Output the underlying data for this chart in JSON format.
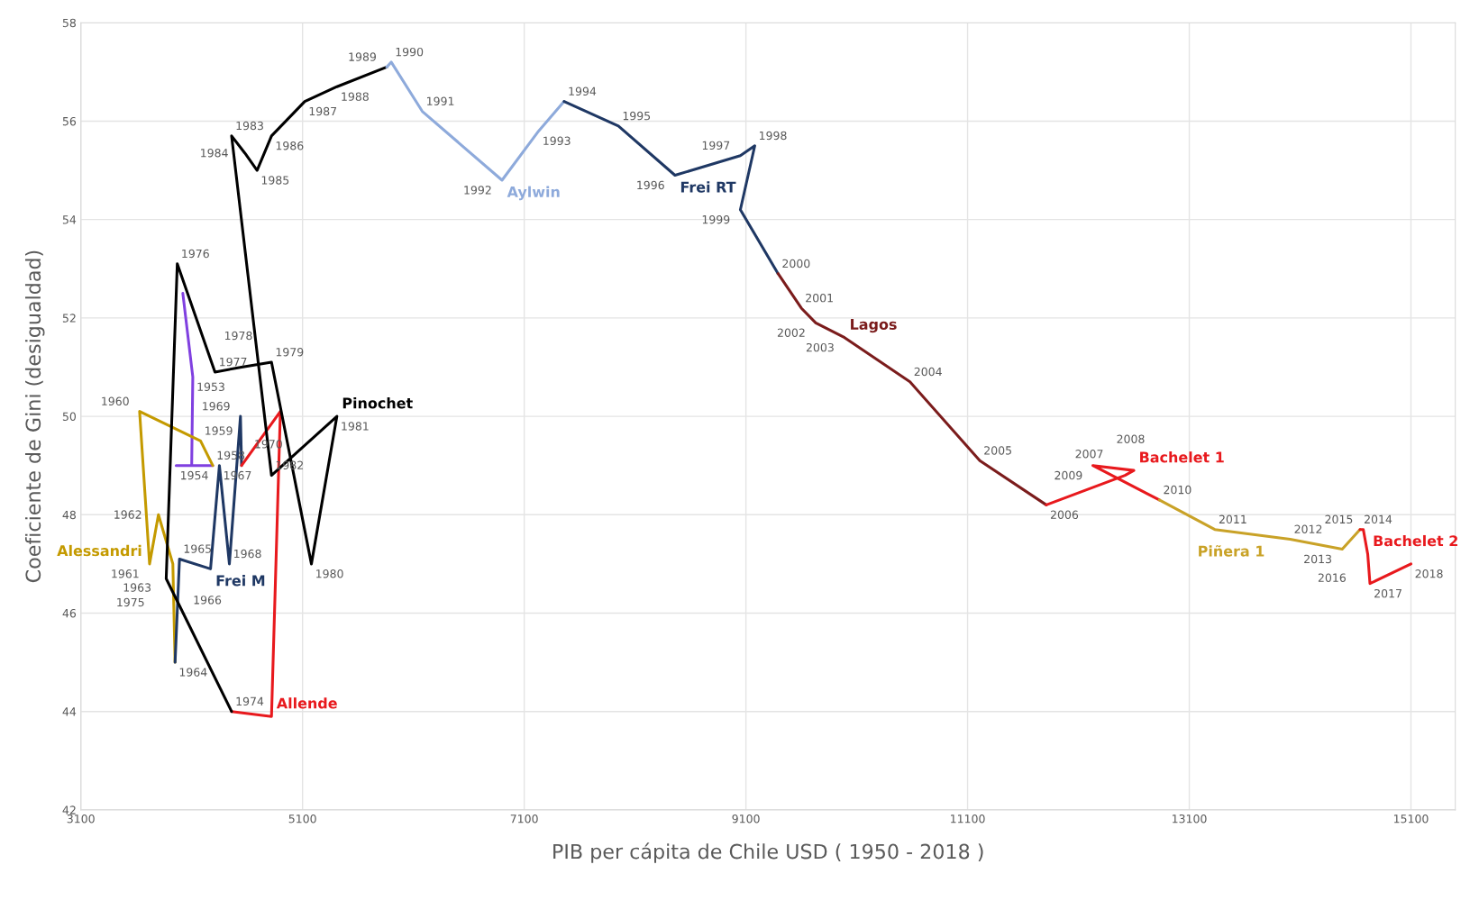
{
  "chart_data": {
    "type": "line",
    "xlabel": "PIB per cápita de Chile USD ( 1950 - 2018 )",
    "ylabel": "Coeficiente de Gini (desigualdad)",
    "xlim": [
      3100,
      15500
    ],
    "xticks": [
      3100,
      5100,
      7100,
      9100,
      11100,
      13100,
      15100
    ],
    "ylim": [
      42,
      58
    ],
    "yticks": [
      42,
      44,
      46,
      48,
      50,
      52,
      54,
      56,
      58
    ],
    "grid": true,
    "legend": false,
    "marker": "none",
    "line_style": "solid",
    "series": [
      {
        "color": "#8040e0",
        "x": [
          4020,
          4110,
          4100,
          3960,
          4290
        ],
        "values": [
          52.5,
          50.8,
          49.0,
          49.0,
          49.0
        ]
      },
      {
        "name": "Alessandri",
        "color": "#c49a00",
        "x": [
          4290,
          4180,
          3630,
          3720,
          3800,
          3930,
          3950
        ],
        "values": [
          49.0,
          49.5,
          50.1,
          47.0,
          48.0,
          47.0,
          45.0
        ]
      },
      {
        "name": "Frei M",
        "color": "#1f3864",
        "x": [
          3950,
          3990,
          4270,
          4350,
          4440,
          4540,
          4550
        ],
        "values": [
          45.0,
          47.1,
          46.9,
          49.0,
          47.0,
          50.0,
          49.0
        ]
      },
      {
        "name": "Allende",
        "color": "#e8191d",
        "x": [
          4550,
          4900,
          4820,
          4460
        ],
        "values": [
          49.0,
          50.1,
          43.9,
          44.0
        ]
      },
      {
        "name": "Pinochet",
        "color": "#000000",
        "x": [
          4460,
          3870,
          3970,
          4310,
          4550,
          4820,
          5180,
          5410,
          4820,
          4460,
          4580,
          4690,
          4820,
          5120,
          5410,
          5860
        ],
        "values": [
          44.0,
          46.7,
          53.1,
          50.9,
          51.0,
          51.1,
          47.0,
          50.0,
          48.8,
          55.7,
          55.35,
          55.0,
          55.7,
          56.4,
          56.7,
          57.1
        ]
      },
      {
        "name": "Aylwin",
        "color": "#8eaadb",
        "x": [
          5860,
          5900,
          6180,
          6900,
          7230,
          7460
        ],
        "values": [
          57.1,
          57.2,
          56.2,
          54.8,
          55.8,
          56.4
        ]
      },
      {
        "name": "Frei RT",
        "color": "#1f3864",
        "x": [
          7460,
          7950,
          8460,
          9050,
          9180,
          9050,
          9390
        ],
        "values": [
          56.4,
          55.9,
          54.9,
          55.3,
          55.5,
          54.2,
          52.9
        ]
      },
      {
        "name": "Lagos",
        "color": "#7b1c1c",
        "x": [
          9390,
          9600,
          9730,
          9990,
          10580,
          11210,
          11810
        ],
        "values": [
          52.9,
          52.2,
          51.9,
          51.6,
          50.7,
          49.1,
          48.2
        ]
      },
      {
        "name": "Bachelet 1",
        "color": "#e8191d",
        "x": [
          11810,
          12520,
          12600,
          12230,
          12830
        ],
        "values": [
          48.2,
          48.8,
          48.9,
          49.0,
          48.3
        ]
      },
      {
        "name": "Piñera 1",
        "color": "#c9a227",
        "x": [
          12830,
          13330,
          14010,
          14480,
          14640
        ],
        "values": [
          48.3,
          47.7,
          47.5,
          47.3,
          47.7
        ]
      },
      {
        "name": "Bachelet 2",
        "color": "#e8191d",
        "x": [
          14640,
          14670,
          14710,
          14730,
          15100
        ],
        "values": [
          47.7,
          47.7,
          47.2,
          46.6,
          47.0
        ]
      }
    ],
    "annotations": [
      {
        "text": "1953",
        "x": 4110,
        "y": 50.8
      },
      {
        "text": "1954",
        "x": 3960,
        "y": 49.0
      },
      {
        "text": "1958",
        "x": 4290,
        "y": 49.0
      },
      {
        "text": "1959",
        "x": 4180,
        "y": 49.5
      },
      {
        "text": "1960",
        "x": 3630,
        "y": 50.1
      },
      {
        "text": "1961",
        "x": 3720,
        "y": 47.0
      },
      {
        "text": "1962",
        "x": 3800,
        "y": 48.0
      },
      {
        "text": "1963",
        "x": 3930,
        "y": 47.0
      },
      {
        "text": "1964",
        "x": 3950,
        "y": 45.0
      },
      {
        "text": "1965",
        "x": 3990,
        "y": 47.1
      },
      {
        "text": "1966",
        "x": 4270,
        "y": 46.9
      },
      {
        "text": "1967",
        "x": 4350,
        "y": 49.0
      },
      {
        "text": "1968",
        "x": 4440,
        "y": 47.0
      },
      {
        "text": "1969",
        "x": 4540,
        "y": 50.0
      },
      {
        "text": "1970",
        "x": 4550,
        "y": 49.0
      },
      {
        "text": "1974",
        "x": 4460,
        "y": 44.0
      },
      {
        "text": "1975",
        "x": 3870,
        "y": 46.7
      },
      {
        "text": "1976",
        "x": 3970,
        "y": 53.1
      },
      {
        "text": "1977",
        "x": 4310,
        "y": 50.9
      },
      {
        "text": "1978",
        "x": 4550,
        "y": 51.0
      },
      {
        "text": "1979",
        "x": 4820,
        "y": 51.1
      },
      {
        "text": "1980",
        "x": 5180,
        "y": 47.0
      },
      {
        "text": "1981",
        "x": 5410,
        "y": 50.0
      },
      {
        "text": "1982",
        "x": 4820,
        "y": 48.8
      },
      {
        "text": "1983",
        "x": 4460,
        "y": 55.7
      },
      {
        "text": "1984",
        "x": 4580,
        "y": 55.35
      },
      {
        "text": "1985",
        "x": 4690,
        "y": 55.0
      },
      {
        "text": "1986",
        "x": 4820,
        "y": 55.7
      },
      {
        "text": "1987",
        "x": 5120,
        "y": 56.4
      },
      {
        "text": "1988",
        "x": 5410,
        "y": 56.7
      },
      {
        "text": "1989",
        "x": 5860,
        "y": 57.1
      },
      {
        "text": "1990",
        "x": 5900,
        "y": 57.2
      },
      {
        "text": "1991",
        "x": 6180,
        "y": 56.2
      },
      {
        "text": "1992",
        "x": 6900,
        "y": 54.8
      },
      {
        "text": "1993",
        "x": 7230,
        "y": 55.8
      },
      {
        "text": "1994",
        "x": 7460,
        "y": 56.4
      },
      {
        "text": "1995",
        "x": 7950,
        "y": 55.9
      },
      {
        "text": "1996",
        "x": 8460,
        "y": 54.9
      },
      {
        "text": "1997",
        "x": 9050,
        "y": 55.3
      },
      {
        "text": "1998",
        "x": 9180,
        "y": 55.5
      },
      {
        "text": "1999",
        "x": 9050,
        "y": 54.2
      },
      {
        "text": "2000",
        "x": 9390,
        "y": 52.9
      },
      {
        "text": "2001",
        "x": 9600,
        "y": 52.2
      },
      {
        "text": "2002",
        "x": 9730,
        "y": 51.9
      },
      {
        "text": "2003",
        "x": 9990,
        "y": 51.6
      },
      {
        "text": "2004",
        "x": 10580,
        "y": 50.7
      },
      {
        "text": "2005",
        "x": 11210,
        "y": 49.1
      },
      {
        "text": "2006",
        "x": 11810,
        "y": 48.2
      },
      {
        "text": "2007",
        "x": 12520,
        "y": 48.8
      },
      {
        "text": "2008",
        "x": 12600,
        "y": 48.9
      },
      {
        "text": "2009",
        "x": 12230,
        "y": 49.0
      },
      {
        "text": "2010",
        "x": 12830,
        "y": 48.3
      },
      {
        "text": "2011",
        "x": 13330,
        "y": 47.7
      },
      {
        "text": "2012",
        "x": 14010,
        "y": 47.5
      },
      {
        "text": "2013",
        "x": 14480,
        "y": 47.3
      },
      {
        "text": "2014",
        "x": 14640,
        "y": 47.7
      },
      {
        "text": "2015",
        "x": 14670,
        "y": 47.7
      },
      {
        "text": "2016",
        "x": 14710,
        "y": 47.2
      },
      {
        "text": "2017",
        "x": 14730,
        "y": 46.6
      },
      {
        "text": "2018",
        "x": 15100,
        "y": 47.0
      }
    ]
  }
}
